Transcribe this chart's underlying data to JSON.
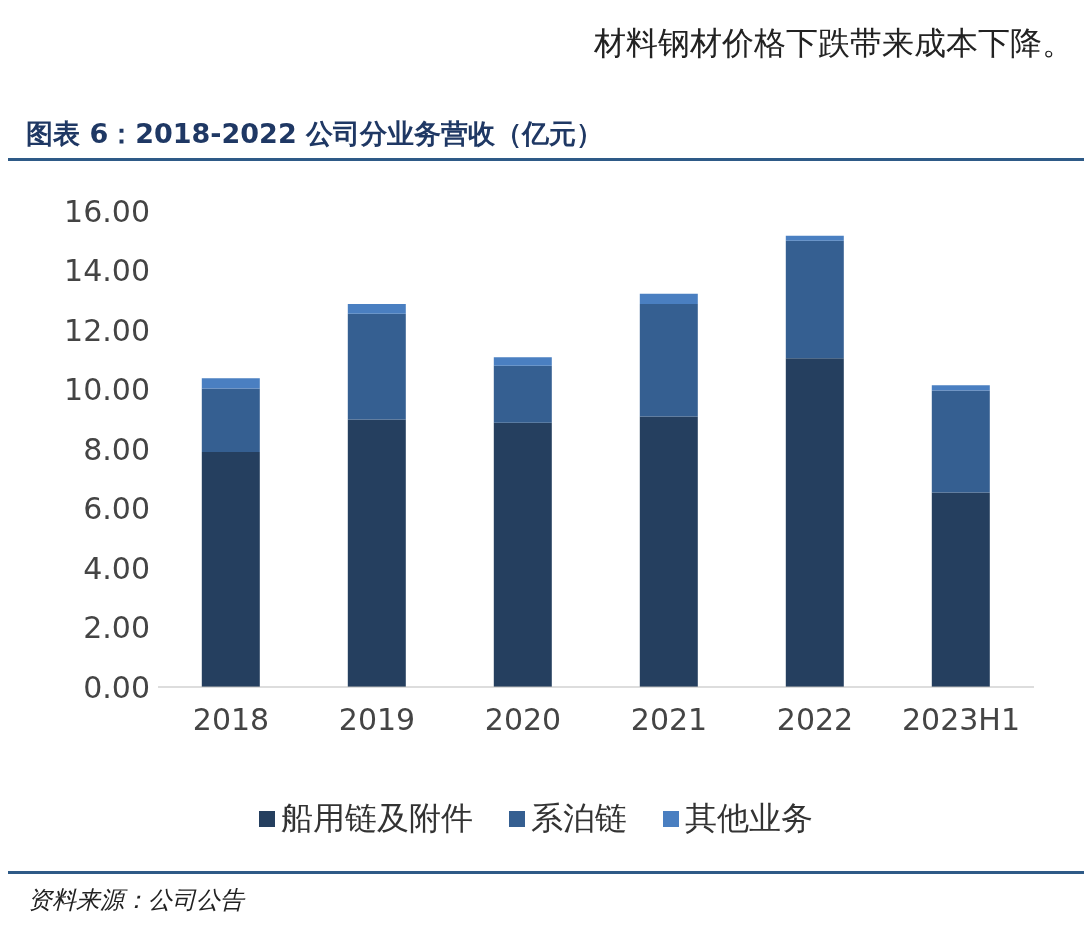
{
  "chart_data": {
    "type": "bar",
    "title": "图表 6：2018-2022 公司分业务营收（亿元）",
    "annotations": [
      "材料钢材价格下跌带来成本下降。",
      "资料来源：公司公告"
    ],
    "categories": [
      "2018",
      "2019",
      "2020",
      "2021",
      "2022",
      "2023H1"
    ],
    "stacked": true,
    "series": [
      {
        "name": "船用链及附件",
        "color": "#253f5f",
        "values": [
          7.9,
          8.99,
          8.88,
          9.09,
          11.05,
          6.54
        ]
      },
      {
        "name": "系泊链",
        "color": "#355f91",
        "values": [
          2.13,
          3.56,
          1.92,
          3.78,
          3.95,
          3.43
        ]
      },
      {
        "name": "其他业务",
        "color": "#4a7fc1",
        "values": [
          0.35,
          0.32,
          0.28,
          0.35,
          0.17,
          0.17
        ]
      }
    ],
    "ylim": [
      0,
      16
    ],
    "yticks": [
      {
        "value": 0,
        "label": "0.00"
      },
      {
        "value": 2,
        "label": "2.00"
      },
      {
        "value": 4,
        "label": "4.00"
      },
      {
        "value": 6,
        "label": "6.00"
      },
      {
        "value": 8,
        "label": "8.00"
      },
      {
        "value": 10,
        "label": "10.00"
      },
      {
        "value": 12,
        "label": "12.00"
      },
      {
        "value": 14,
        "label": "14.00"
      },
      {
        "value": 16,
        "label": "16.00"
      }
    ],
    "grid": false,
    "legend": "bottom"
  }
}
